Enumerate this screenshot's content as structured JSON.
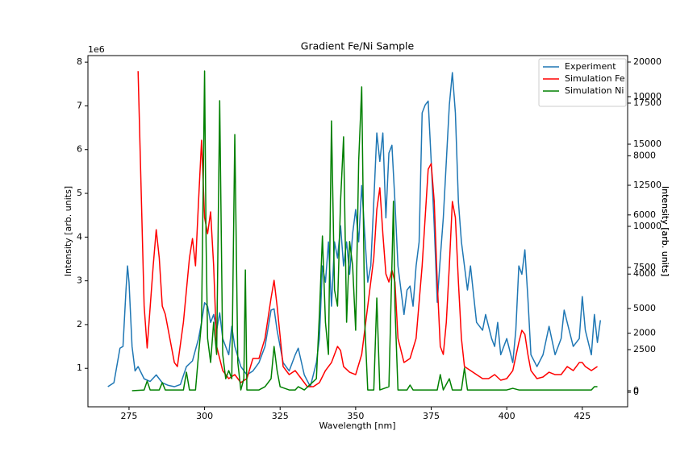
{
  "chart_data": {
    "type": "line",
    "title": "Gradient Fe/Ni Sample",
    "x_label": "Wavelength [nm]",
    "y_label": "Intensity [arb. units]",
    "y_offset_label": "1e6",
    "y2_label": "Intensity [arb. units]",
    "y3_label": "Intensity [arb. units]",
    "xlim": [
      261.4,
      440
    ],
    "xticks": [
      275,
      300,
      325,
      350,
      375,
      400,
      425
    ],
    "ylim": [
      0.12,
      8.15
    ],
    "yticks": [
      1,
      2,
      3,
      4,
      5,
      6,
      7,
      8
    ],
    "y2lim": [
      -980,
      20392
    ],
    "y2ticks": [
      0,
      2500,
      5000,
      7500,
      10000,
      12500,
      15000,
      17500,
      20000
    ],
    "y3lim": [
      -490,
      11390
    ],
    "y3ticks": [
      0,
      2000,
      4000,
      6000,
      8000,
      10000
    ],
    "legend": "upper right",
    "grid": false,
    "series": [
      {
        "name": "Experiment",
        "color": "#1f77b4",
        "axis": "y",
        "x": [
          268,
          270,
          272,
          273,
          274,
          274.5,
          275,
          276,
          277,
          278,
          280,
          282,
          284,
          286,
          288,
          290,
          292,
          294,
          296,
          298,
          299,
          300,
          301,
          302,
          303,
          304,
          305,
          306,
          308,
          309,
          310,
          312,
          314,
          316,
          318,
          320,
          322,
          323,
          324,
          326,
          328,
          330,
          331,
          333,
          335,
          337,
          338,
          339,
          340,
          341,
          342,
          343,
          344,
          345,
          346,
          347,
          348,
          349,
          350,
          351,
          352,
          353,
          354,
          355,
          356,
          357,
          358,
          359,
          360,
          361,
          362,
          363,
          364,
          366,
          367,
          368,
          369,
          370,
          371,
          372,
          373,
          374,
          375,
          376,
          377,
          378,
          379,
          380,
          381,
          382,
          383,
          384,
          385,
          386,
          387,
          388,
          390,
          392,
          393,
          395,
          396,
          397,
          398,
          400,
          402,
          403,
          404,
          405,
          406,
          407,
          408,
          410,
          412,
          414,
          416,
          418,
          419,
          420,
          422,
          424,
          425,
          426,
          428,
          429,
          430,
          431
        ],
        "values": [
          0.58,
          0.67,
          1.46,
          1.5,
          2.8,
          3.34,
          2.97,
          1.5,
          0.94,
          1.04,
          0.76,
          0.7,
          0.85,
          0.67,
          0.61,
          0.58,
          0.63,
          1.04,
          1.17,
          1.68,
          2.05,
          2.5,
          2.42,
          2.05,
          2.23,
          1.87,
          2.27,
          1.68,
          1.31,
          1.96,
          1.5,
          1.04,
          0.85,
          0.94,
          1.13,
          1.5,
          2.33,
          2.36,
          1.87,
          1.13,
          0.94,
          1.31,
          1.46,
          0.85,
          0.58,
          1.13,
          1.68,
          3.34,
          2.97,
          3.89,
          2.42,
          3.89,
          3.52,
          4.26,
          3.34,
          3.89,
          3.15,
          4.08,
          4.63,
          3.89,
          5.18,
          4.08,
          2.97,
          3.34,
          4.81,
          6.38,
          5.73,
          6.38,
          4.44,
          5.92,
          6.1,
          4.81,
          3.34,
          2.23,
          2.79,
          2.88,
          2.42,
          3.34,
          3.89,
          6.84,
          7.02,
          7.11,
          5.73,
          4.26,
          2.51,
          3.52,
          4.44,
          5.73,
          7.02,
          7.76,
          6.84,
          4.81,
          3.89,
          3.34,
          2.79,
          3.34,
          2.05,
          1.87,
          2.23,
          1.68,
          1.5,
          2.05,
          1.31,
          1.68,
          1.13,
          1.87,
          3.34,
          3.15,
          3.71,
          2.6,
          1.31,
          1.04,
          1.31,
          1.96,
          1.31,
          1.68,
          2.33,
          2.05,
          1.5,
          1.68,
          2.64,
          1.87,
          1.31,
          2.23,
          1.59,
          2.1
        ]
      },
      {
        "name": "Simulation Fe",
        "color": "#ff0000",
        "axis": "y2",
        "x": [
          278,
          280,
          281,
          283,
          284,
          285,
          286,
          287,
          288,
          290,
          291,
          293,
          295,
          296,
          297,
          298,
          299,
          300,
          301,
          302,
          303,
          304,
          306,
          308,
          310,
          312,
          314,
          316,
          318,
          320,
          322,
          323,
          324,
          326,
          328,
          330,
          332,
          334,
          336,
          338,
          340,
          342,
          344,
          345,
          346,
          348,
          350,
          352,
          354,
          356,
          357,
          358,
          359,
          360,
          361,
          362,
          363,
          364,
          366,
          368,
          370,
          372,
          374,
          375,
          376,
          377,
          378,
          379,
          380,
          381,
          382,
          383,
          384,
          385,
          386,
          388,
          390,
          392,
          394,
          396,
          398,
          400,
          402,
          404,
          405,
          406,
          407,
          408,
          410,
          412,
          414,
          416,
          418,
          420,
          422,
          424,
          425,
          426,
          428,
          430
        ],
        "values": [
          19450,
          5150,
          2600,
          7600,
          9800,
          8085,
          5150,
          4650,
          3675,
          1715,
          1470,
          4165,
          8085,
          9260,
          7600,
          11515,
          15240,
          10535,
          9555,
          10880,
          7600,
          2695,
          1225,
          735,
          980,
          490,
          735,
          1960,
          1960,
          3185,
          5635,
          6715,
          5150,
          1470,
          980,
          1225,
          735,
          245,
          245,
          490,
          1225,
          1715,
          2695,
          2450,
          1470,
          1127,
          980,
          2205,
          5150,
          8085,
          11025,
          12350,
          9555,
          7105,
          6615,
          7350,
          6615,
          3185,
          1715,
          1960,
          3185,
          7600,
          13475,
          13820,
          11515,
          6615,
          2695,
          2205,
          4165,
          7600,
          11515,
          10535,
          6615,
          3185,
          1470,
          1225,
          980,
          735,
          735,
          980,
          637,
          735,
          1225,
          2940,
          3675,
          3430,
          2205,
          1225,
          735,
          833,
          1127,
          980,
          980,
          1470,
          1225,
          1715,
          1715,
          1470,
          1225,
          1470
        ]
      },
      {
        "name": "Simulation Ni",
        "color": "#008000",
        "axis": "y3",
        "x": [
          276,
          280,
          281,
          282,
          285,
          286,
          287,
          293,
          294,
          295,
          297,
          298,
          299,
          300,
          300.5,
          301,
          302,
          303,
          304,
          305,
          306,
          307,
          308,
          309,
          310,
          311,
          312,
          313,
          313.5,
          314,
          318,
          320,
          322,
          323,
          324,
          325,
          328,
          330,
          331,
          333,
          337,
          338,
          339,
          340,
          341,
          342,
          343,
          344,
          345,
          346,
          347,
          348,
          349,
          350,
          351,
          352,
          353,
          354,
          356,
          357,
          358,
          361,
          362,
          362.5,
          363,
          364,
          367,
          368,
          369,
          377,
          378,
          379,
          381,
          382,
          385,
          386,
          387,
          400,
          402,
          404,
          428,
          429,
          430
        ],
        "values": [
          55,
          80,
          380,
          80,
          80,
          330,
          80,
          80,
          680,
          80,
          80,
          1280,
          2370,
          10870,
          5100,
          1825,
          1010,
          2370,
          1280,
          9865,
          1280,
          460,
          735,
          460,
          8720,
          1010,
          80,
          460,
          4140,
          80,
          80,
          190,
          460,
          1550,
          735,
          190,
          80,
          80,
          190,
          80,
          460,
          2640,
          5285,
          2370,
          1280,
          9180,
          3460,
          2915,
          6460,
          8640,
          2370,
          5100,
          4280,
          2100,
          7820,
          10330,
          2370,
          80,
          80,
          3190,
          80,
          190,
          4280,
          6460,
          2915,
          80,
          80,
          245,
          80,
          80,
          600,
          80,
          460,
          80,
          80,
          820,
          80,
          80,
          135,
          80,
          80,
          190,
          190
        ]
      }
    ]
  }
}
